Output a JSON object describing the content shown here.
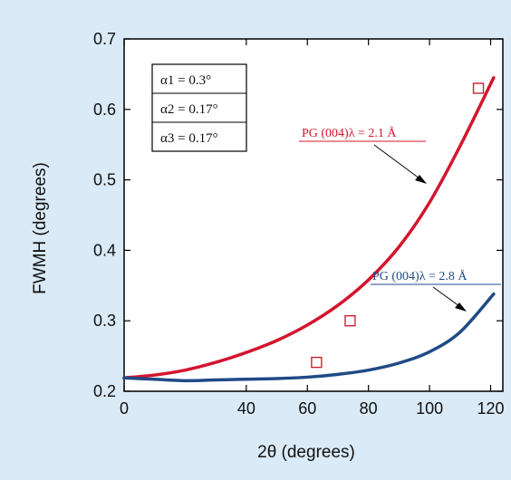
{
  "chart_data": {
    "type": "line",
    "xlabel": "2θ (degrees)",
    "ylabel": "FWMH (degrees)",
    "xlim": [
      0,
      124
    ],
    "ylim": [
      0.2,
      0.7
    ],
    "x_ticks": [
      0,
      40,
      60,
      80,
      100,
      120
    ],
    "y_ticks": [
      0.2,
      0.3,
      0.4,
      0.5,
      0.6,
      0.7
    ],
    "grid": false,
    "series": [
      {
        "name": "PG (004)λ = 2.1 Å",
        "color": "#d4152e",
        "x": [
          0,
          10,
          20,
          30,
          40,
          50,
          60,
          70,
          80,
          90,
          100,
          110,
          121
        ],
        "y": [
          0.219,
          0.223,
          0.23,
          0.241,
          0.255,
          0.272,
          0.294,
          0.322,
          0.358,
          0.405,
          0.468,
          0.548,
          0.645
        ]
      },
      {
        "name": "PG (004)λ = 2.8 Å",
        "color": "#1f4a85",
        "x": [
          0,
          10,
          20,
          30,
          40,
          50,
          60,
          70,
          80,
          90,
          100,
          110,
          121
        ],
        "y": [
          0.219,
          0.217,
          0.215,
          0.216,
          0.217,
          0.218,
          0.22,
          0.224,
          0.23,
          0.24,
          0.256,
          0.284,
          0.338
        ]
      }
    ],
    "measured_points": {
      "color": "#cc2233",
      "x": [
        63,
        74,
        116
      ],
      "y": [
        0.241,
        0.3,
        0.63
      ]
    },
    "legend_box": [
      "α1 = 0.3°",
      "α2 = 0.17°",
      "α3 = 0.17°"
    ],
    "annotations": [
      "PG (004)λ = 2.1 Å",
      "PG (004)λ = 2.8 Å"
    ]
  }
}
